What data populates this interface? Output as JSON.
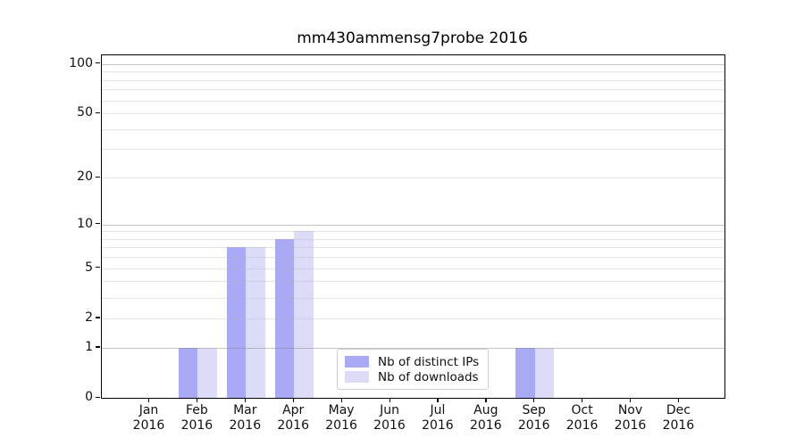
{
  "chart_data": {
    "type": "bar",
    "title": "mm430ammensg7probe 2016",
    "categories": [
      "Jan",
      "Feb",
      "Mar",
      "Apr",
      "May",
      "Jun",
      "Jul",
      "Aug",
      "Sep",
      "Oct",
      "Nov",
      "Dec"
    ],
    "category_year": "2016",
    "series": [
      {
        "name": "Nb of distinct IPs",
        "color": "#a9a9f6",
        "values": [
          0,
          1,
          7,
          8,
          0,
          0,
          0,
          0,
          1,
          0,
          0,
          0
        ]
      },
      {
        "name": "Nb of downloads",
        "color": "#dcdcf8",
        "values": [
          0,
          1,
          7,
          9,
          0,
          0,
          0,
          0,
          1,
          0,
          0,
          0
        ]
      }
    ],
    "xlabel": "",
    "ylabel": "",
    "yscale": "log1p",
    "ylim": [
      0,
      113
    ],
    "ytick_values": [
      0,
      1,
      2,
      5,
      10,
      20,
      50,
      100
    ],
    "ytick_labels": [
      "0",
      "1",
      "2",
      "5",
      "10",
      "20",
      "50",
      "100"
    ],
    "major_grid_values": [
      1,
      10,
      100
    ],
    "minor_grid_values": [
      2,
      3,
      4,
      5,
      6,
      7,
      8,
      9,
      20,
      30,
      40,
      50,
      60,
      70,
      80,
      90
    ],
    "grid": "on",
    "legend_position": "lower-center-inside",
    "colors": {
      "bar_distinct_ips": "#a9a9f6",
      "bar_downloads": "#dcdcf8",
      "grid_major": "rgba(140,140,140,0.5)",
      "grid_minor": "rgba(180,180,180,0.35)",
      "spine": "#000000",
      "tick_text": "#111111",
      "background": "#ffffff"
    }
  }
}
